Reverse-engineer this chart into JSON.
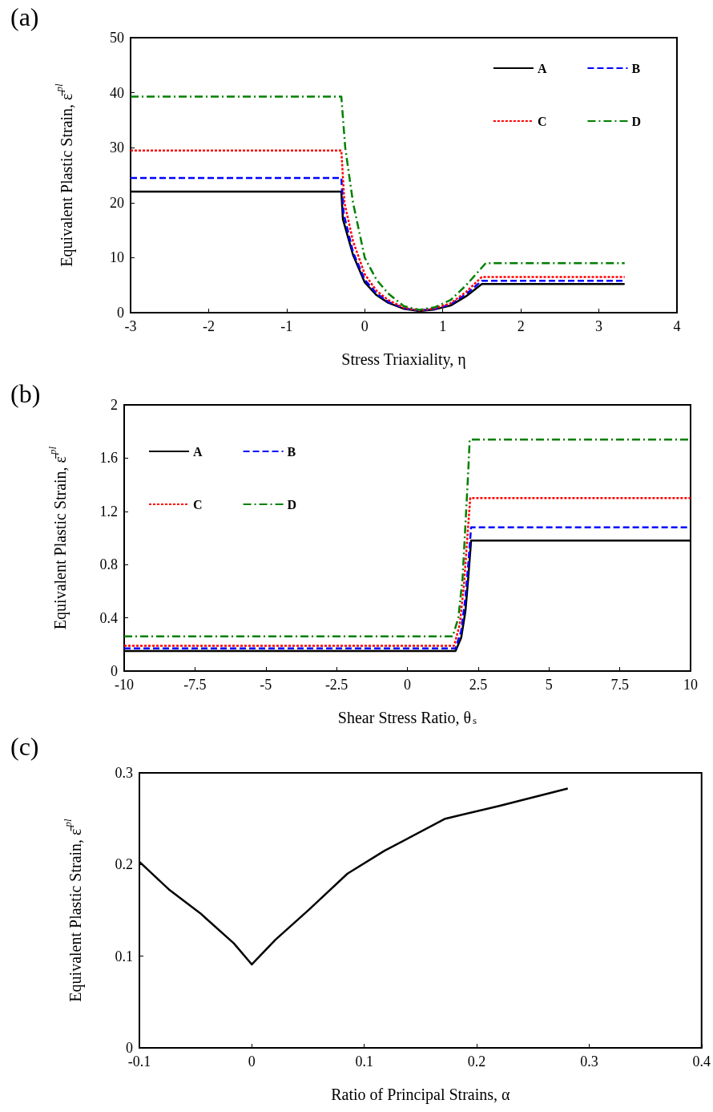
{
  "chart_data": [
    {
      "type": "line",
      "title": "(a)",
      "xlabel": "Stress Triaxiality, η",
      "ylabel": "Equivalent Plastic Strain, ε̄$^{pl}$",
      "xlim": [
        -3,
        4
      ],
      "xticks": [
        -3,
        -2,
        -1,
        0,
        1,
        2,
        3,
        4
      ],
      "ylim": [
        0,
        50
      ],
      "yticks": [
        0,
        10,
        20,
        30,
        40,
        50
      ],
      "grid": false,
      "legend": "top right",
      "marker": "none",
      "series": [
        {
          "name": "A",
          "color": "#000000",
          "line_style": "solid",
          "x": [
            -3,
            -0.3,
            -0.28,
            -0.15,
            0,
            0.15,
            0.3,
            0.5,
            0.7,
            0.9,
            1.1,
            1.3,
            1.5,
            3.33
          ],
          "values": [
            22,
            22,
            17,
            10.5,
            5.5,
            3.2,
            1.8,
            0.7,
            0.3,
            0.6,
            1.3,
            3,
            5.2,
            5.2
          ]
        },
        {
          "name": "B",
          "color": "#0000ff",
          "line_style": "dashed",
          "x": [
            -3,
            -0.3,
            -0.27,
            -0.15,
            0,
            0.15,
            0.3,
            0.5,
            0.7,
            0.9,
            1.1,
            1.3,
            1.5,
            3.33
          ],
          "values": [
            24.5,
            24.5,
            18,
            11,
            6,
            3.5,
            2,
            0.8,
            0.4,
            0.7,
            1.5,
            3.4,
            5.8,
            5.8
          ]
        },
        {
          "name": "C",
          "color": "#ff0000",
          "line_style": "dotted",
          "x": [
            -3,
            -0.3,
            -0.26,
            -0.15,
            0,
            0.15,
            0.3,
            0.5,
            0.7,
            0.9,
            1.1,
            1.3,
            1.5,
            3.33
          ],
          "values": [
            29.5,
            29.5,
            20,
            13,
            7,
            4,
            2.3,
            0.9,
            0.4,
            0.8,
            1.7,
            3.8,
            6.5,
            6.5
          ]
        },
        {
          "name": "D",
          "color": "#008000",
          "line_style": "dashdot",
          "x": [
            -3,
            -0.3,
            -0.25,
            -0.15,
            0,
            0.15,
            0.3,
            0.5,
            0.7,
            0.9,
            1.1,
            1.3,
            1.55,
            3.33
          ],
          "values": [
            39.3,
            39.3,
            30,
            20,
            10,
            6,
            3.5,
            1.2,
            0.5,
            1,
            2.3,
            5,
            9,
            9
          ]
        }
      ]
    },
    {
      "type": "line",
      "title": "(b)",
      "xlabel": "Shear Stress Ratio, θ$_{s}$",
      "ylabel": "Equivalent Plastic Strain, ε̄$^{pl}$",
      "xlim": [
        -10,
        10
      ],
      "xticks": [
        -10,
        -7.5,
        -5,
        -2.5,
        0,
        2.5,
        5,
        7.5,
        10
      ],
      "ylim": [
        0,
        2
      ],
      "yticks": [
        0,
        0.4,
        0.8,
        1.2,
        1.6,
        2
      ],
      "grid": false,
      "legend": "top left",
      "marker": "none",
      "series": [
        {
          "name": "A",
          "color": "#000000",
          "line_style": "solid",
          "x": [
            -10,
            1.7,
            1.9,
            2.05,
            2.15,
            2.25,
            10
          ],
          "values": [
            0.15,
            0.15,
            0.25,
            0.45,
            0.7,
            0.98,
            0.98
          ]
        },
        {
          "name": "B",
          "color": "#0000ff",
          "line_style": "dashed",
          "x": [
            -10,
            1.7,
            1.9,
            2.05,
            2.15,
            2.25,
            10
          ],
          "values": [
            0.17,
            0.17,
            0.3,
            0.55,
            0.8,
            1.08,
            1.08
          ]
        },
        {
          "name": "C",
          "color": "#ff0000",
          "line_style": "dotted",
          "x": [
            -10,
            1.65,
            1.85,
            2,
            2.1,
            2.22,
            10
          ],
          "values": [
            0.19,
            0.19,
            0.35,
            0.65,
            0.95,
            1.3,
            1.3
          ]
        },
        {
          "name": "D",
          "color": "#008000",
          "line_style": "dashdot",
          "x": [
            -10,
            1.6,
            1.8,
            1.95,
            2.05,
            2.15,
            2.2,
            10
          ],
          "values": [
            0.26,
            0.26,
            0.4,
            0.7,
            1.1,
            1.5,
            1.74,
            1.74
          ]
        }
      ]
    },
    {
      "type": "line",
      "title": "(c)",
      "xlabel": "Ratio of Principal Strains, α",
      "ylabel": "Equivalent Plastic Strain, ε̄$^{pl}$",
      "xlim": [
        -0.1,
        0.4
      ],
      "xticks": [
        -0.1,
        0,
        0.1,
        0.2,
        0.3,
        0.4
      ],
      "ylim": [
        0,
        0.3
      ],
      "yticks": [
        0,
        0.1,
        0.2,
        0.3
      ],
      "grid": false,
      "legend": false,
      "marker": "none",
      "series": [
        {
          "color": "#000000",
          "line_style": "solid",
          "x": [
            -0.1,
            -0.073,
            -0.046,
            -0.016,
            0,
            0.021,
            0.051,
            0.085,
            0.118,
            0.172,
            0.22,
            0.281
          ],
          "values": [
            0.203,
            0.172,
            0.147,
            0.114,
            0.091,
            0.118,
            0.151,
            0.19,
            0.215,
            0.25,
            0.264,
            0.283
          ]
        }
      ]
    }
  ]
}
